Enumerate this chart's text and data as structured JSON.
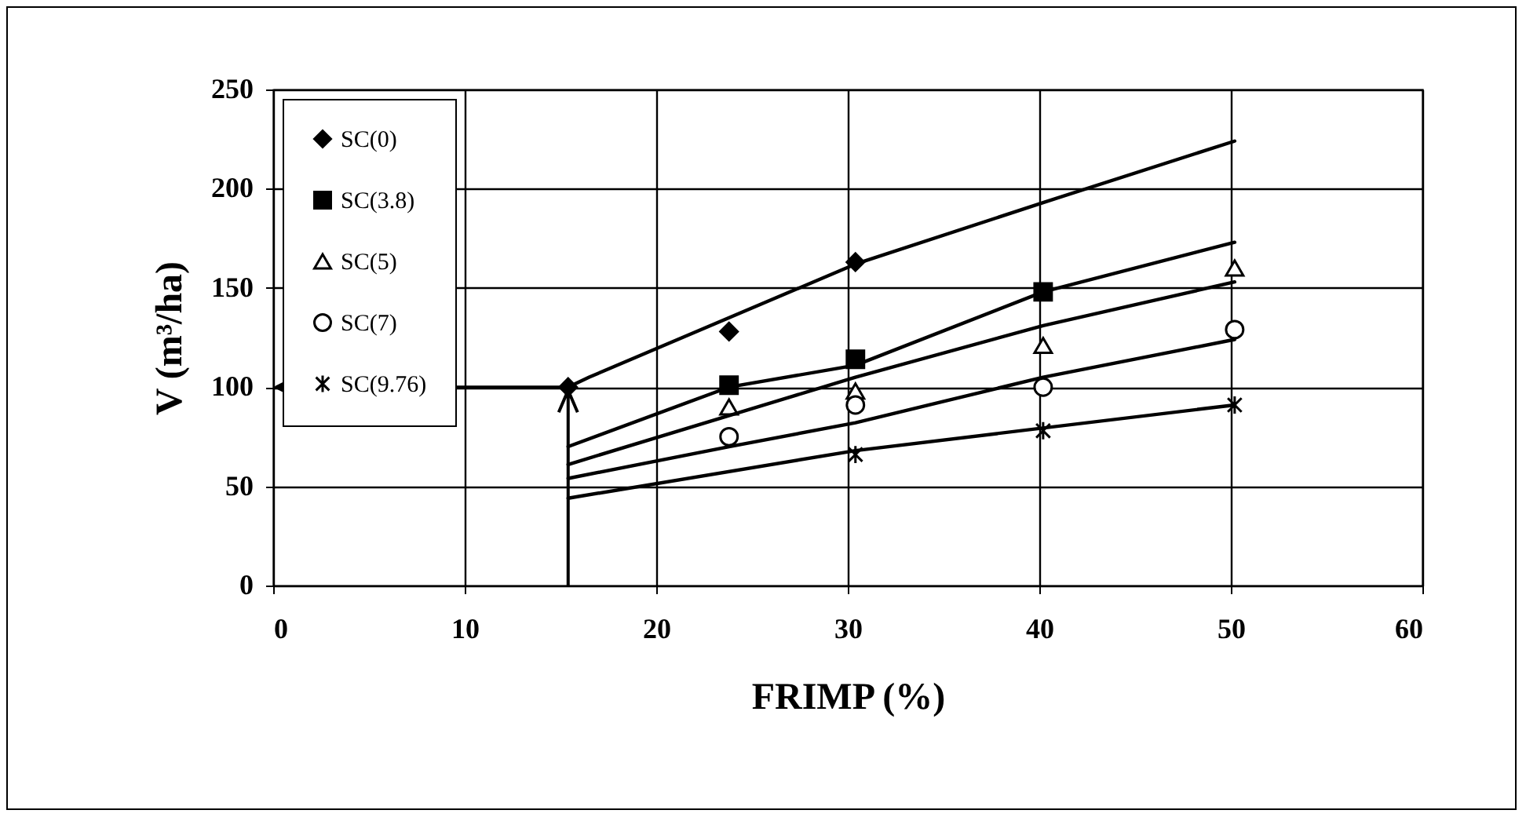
{
  "chart_data": {
    "type": "scatter",
    "xlabel": "FRIMP (%)",
    "ylabel": "V (m³/ha)",
    "xlim": [
      0,
      60
    ],
    "xticks": [
      0,
      10,
      20,
      30,
      40,
      50,
      60
    ],
    "ylim": [
      0,
      250
    ],
    "yticks": [
      0,
      50,
      100,
      150,
      200,
      250
    ],
    "grid": true,
    "legend": "top left",
    "series": [
      {
        "name": "SC(0)",
        "color": "#000000",
        "marker": "diamond",
        "x": [
          15.4,
          23.8,
          30.4
        ],
        "values": [
          100,
          128,
          163
        ]
      },
      {
        "name": "SC(3.8)",
        "color": "#000000",
        "marker": "square",
        "x": [
          23.8,
          30.4,
          40.2
        ],
        "values": [
          101,
          114,
          148
        ]
      },
      {
        "name": "SC(5)",
        "color": "#000000",
        "marker": "triangle",
        "x": [
          23.8,
          30.4,
          40.2,
          50.2
        ],
        "values": [
          90,
          98,
          121,
          160
        ]
      },
      {
        "name": "SC(7)",
        "color": "#000000",
        "marker": "circle",
        "x": [
          23.8,
          30.4,
          40.2,
          50.2
        ],
        "values": [
          75,
          91,
          100,
          129
        ]
      },
      {
        "name": "SC(9.76)",
        "color": "#000000",
        "marker": "cross",
        "x": [
          30.4,
          40.2,
          50.2
        ],
        "values": [
          66,
          78,
          91
        ]
      },
      {
        "type": "line",
        "color": "#000000",
        "marker": "none",
        "x": [
          15.4,
          16.5,
          30.4,
          40.2,
          50.2
        ],
        "values": [
          100,
          105,
          162,
          193,
          224
        ]
      },
      {
        "type": "line",
        "color": "#000000",
        "marker": "none",
        "x": [
          15.4,
          23.8,
          30.4,
          40.2,
          50.2
        ],
        "values": [
          70,
          100,
          111,
          148,
          173
        ]
      },
      {
        "type": "line",
        "color": "#000000",
        "marker": "none",
        "x": [
          15.4,
          30.4,
          40.2,
          50.2
        ],
        "values": [
          61,
          105,
          131,
          153
        ]
      },
      {
        "type": "line",
        "color": "#000000",
        "marker": "none",
        "x": [
          15.4,
          23.8,
          30.4,
          40.2,
          50.2
        ],
        "values": [
          54,
          70,
          82,
          105,
          124
        ]
      },
      {
        "type": "line",
        "color": "#000000",
        "marker": "none",
        "x": [
          15.4,
          30.4,
          50.2
        ],
        "values": [
          44,
          68,
          91
        ]
      }
    ]
  }
}
